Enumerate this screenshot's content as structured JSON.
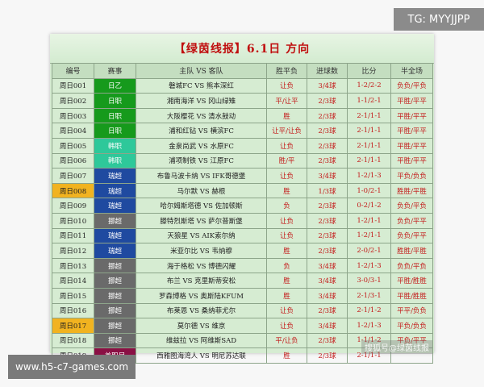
{
  "title": "【绿茵线报】6.1日 方向",
  "headers": [
    "编号",
    "赛事",
    "主队 VS 客队",
    "胜平负",
    "进球数",
    "比分",
    "半全场"
  ],
  "league_colors": {
    "日乙": "#169a1c",
    "日职": "#169a1c",
    "韩职": "#2ec89a",
    "瑞超": "#1f4aa0",
    "挪超": "#6a6a6a",
    "美职足": "#8a1044"
  },
  "highlight_color": "#f1b320",
  "rows": [
    {
      "code": "周日001",
      "league": "日乙",
      "teams": "磐城FC VS 熊本深红",
      "spf": "让负",
      "goals": "3/4球",
      "score": "1-2/2-2",
      "htft": "负负/平负",
      "hl": false
    },
    {
      "code": "周日002",
      "league": "日职",
      "teams": "湘南海洋 VS 冈山绿雉",
      "spf": "平/让平",
      "goals": "2/3球",
      "score": "1-1/2-1",
      "htft": "平胜/平平",
      "hl": false
    },
    {
      "code": "周日003",
      "league": "日职",
      "teams": "大阪樱花 VS 清水鼓动",
      "spf": "胜",
      "goals": "2/3球",
      "score": "2-1/1-1",
      "htft": "平胜/平平",
      "hl": false
    },
    {
      "code": "周日004",
      "league": "日职",
      "teams": "浦和红钻 VS 横滨FC",
      "spf": "让平/让负",
      "goals": "2/3球",
      "score": "2-1/1-1",
      "htft": "平胜/平平",
      "hl": false
    },
    {
      "code": "周日005",
      "league": "韩职",
      "teams": "金泉尚武 VS 水原FC",
      "spf": "让负",
      "goals": "2/3球",
      "score": "2-1/1-1",
      "htft": "平胜/平平",
      "hl": false
    },
    {
      "code": "周日006",
      "league": "韩职",
      "teams": "浦项制铁 VS 江原FC",
      "spf": "胜/平",
      "goals": "2/3球",
      "score": "2-1/1-1",
      "htft": "平胜/平平",
      "hl": false
    },
    {
      "code": "周日007",
      "league": "瑞超",
      "teams": "布鲁马波卡纳 VS IFK哥德堡",
      "spf": "让负",
      "goals": "3/4球",
      "score": "1-2/1-3",
      "htft": "平负/负负",
      "hl": false
    },
    {
      "code": "周日008",
      "league": "瑞超",
      "teams": "马尔默 VS 赫根",
      "spf": "胜",
      "goals": "1/3球",
      "score": "1-0/2-1",
      "htft": "胜胜/平胜",
      "hl": true
    },
    {
      "code": "周日009",
      "league": "瑞超",
      "teams": "哈尔姆斯塔德 VS 佐加顿斯",
      "spf": "负",
      "goals": "2/3球",
      "score": "0-2/1-2",
      "htft": "负负/平负",
      "hl": false
    },
    {
      "code": "周日010",
      "league": "挪超",
      "teams": "滕特烈斯塔 VS 萨尔普斯堡",
      "spf": "让负",
      "goals": "2/3球",
      "score": "1-2/1-1",
      "htft": "负负/平平",
      "hl": false
    },
    {
      "code": "周日011",
      "league": "瑞超",
      "teams": "天狼星 VS AIK索尔纳",
      "spf": "让负",
      "goals": "2/3球",
      "score": "1-2/1-1",
      "htft": "负负/平平",
      "hl": false
    },
    {
      "code": "周日012",
      "league": "瑞超",
      "teams": "米亚尔比 VS 韦纳穆",
      "spf": "胜",
      "goals": "2/3球",
      "score": "2-0/2-1",
      "htft": "胜胜/平胜",
      "hl": false
    },
    {
      "code": "周日013",
      "league": "挪超",
      "teams": "海于格松 VS 博德闪耀",
      "spf": "负",
      "goals": "3/4球",
      "score": "1-2/1-3",
      "htft": "负负/平负",
      "hl": false
    },
    {
      "code": "周日014",
      "league": "挪超",
      "teams": "布兰 VS 克里斯蒂安松",
      "spf": "胜",
      "goals": "3/4球",
      "score": "3-0/3-1",
      "htft": "平胜/胜胜",
      "hl": false
    },
    {
      "code": "周日015",
      "league": "挪超",
      "teams": "罗森博格 VS 奥斯陆KFUM",
      "spf": "胜",
      "goals": "3/4球",
      "score": "2-1/3-1",
      "htft": "平胜/胜胜",
      "hl": false
    },
    {
      "code": "周日016",
      "league": "挪超",
      "teams": "布莱恩 VS 桑纳菲尤尔",
      "spf": "让负",
      "goals": "2/3球",
      "score": "2-1/1-2",
      "htft": "平平/负负",
      "hl": false
    },
    {
      "code": "周日017",
      "league": "挪超",
      "teams": "莫尔德 VS 维京",
      "spf": "让负",
      "goals": "3/4球",
      "score": "1-2/1-3",
      "htft": "平负/负负",
      "hl": true
    },
    {
      "code": "周日018",
      "league": "挪超",
      "teams": "维兹拉 VS 阿维斯SAD",
      "spf": "平/让负",
      "goals": "2/3球",
      "score": "1-1/1-2",
      "htft": "平负/平平",
      "hl": false
    },
    {
      "code": "周日019",
      "league": "美职足",
      "teams": "西雅图海湾人 VS 明尼苏达联",
      "spf": "胜",
      "goals": "2/3球",
      "score": "2-1/1-1",
      "htft": "",
      "hl": false
    }
  ],
  "watermark_top": "TG: MYYJJPP",
  "watermark_bottom": "www.h5-c7-games.com",
  "watermark_corner": "搜狐号@绿茵线报"
}
